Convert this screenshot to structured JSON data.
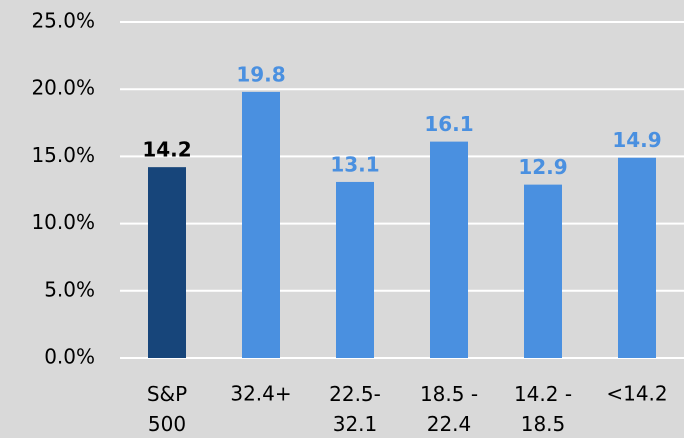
{
  "chart_data": {
    "type": "bar",
    "categories": [
      "S&P\n500",
      "32.4+",
      "22.5-\n32.1",
      "18.5 -\n22.4",
      "14.2 -\n18.5",
      "<14.2"
    ],
    "values": [
      14.2,
      19.8,
      13.1,
      16.1,
      12.9,
      14.9
    ],
    "colors": [
      "#17457a",
      "#4a90e0",
      "#4a90e0",
      "#4a90e0",
      "#4a90e0",
      "#4a90e0"
    ],
    "label_colors": [
      "#000000",
      "#4a90e0",
      "#4a90e0",
      "#4a90e0",
      "#4a90e0",
      "#4a90e0"
    ],
    "ylim": [
      0,
      25
    ],
    "yticks": [
      {
        "value": 0,
        "label": "0.0%"
      },
      {
        "value": 5,
        "label": "5.0%"
      },
      {
        "value": 10,
        "label": "10.0%"
      },
      {
        "value": 15,
        "label": "15.0%"
      },
      {
        "value": 20,
        "label": "20.0%"
      },
      {
        "value": 25,
        "label": "25.0%"
      }
    ],
    "grid": true
  }
}
